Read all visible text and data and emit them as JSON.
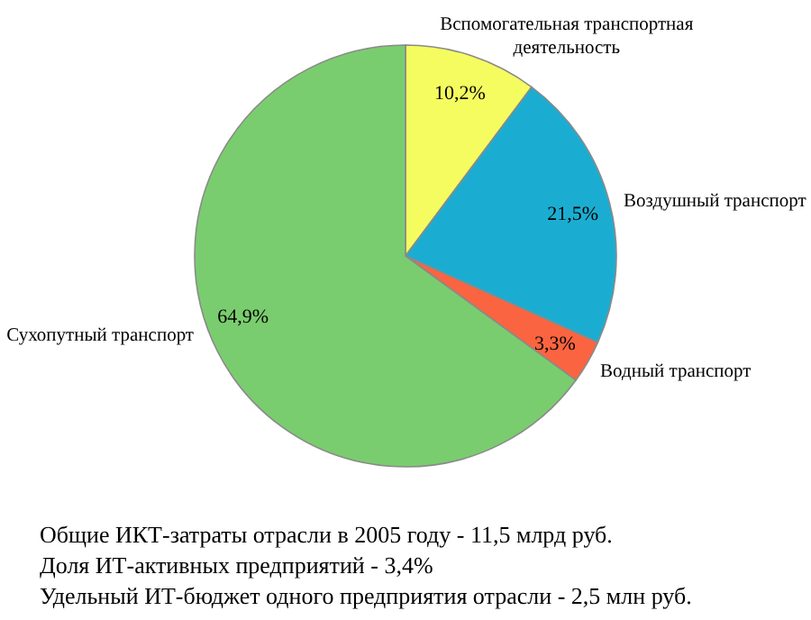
{
  "chart_data": {
    "type": "pie",
    "categories": [
      "Вспомогательная транспортная деятельность",
      "Воздушный транспорт",
      "Водный транспорт",
      "Сухопутный транспорт"
    ],
    "values": [
      10.2,
      21.5,
      3.3,
      64.9
    ],
    "colors": [
      "#f5fc5f",
      "#1badd1",
      "#fb6440",
      "#7acd6e"
    ],
    "value_labels": [
      "10,2%",
      "21,5%",
      "3,3%",
      "64,9%"
    ],
    "annotations": [
      "Общие ИКТ-затраты отрасли в 2005 году - 11,5 млрд руб.",
      "Доля ИТ-активных предприятий - 3,4%",
      "Удельный ИТ-бюджет одного предприятия отрасли - 2,5 млн руб."
    ]
  }
}
